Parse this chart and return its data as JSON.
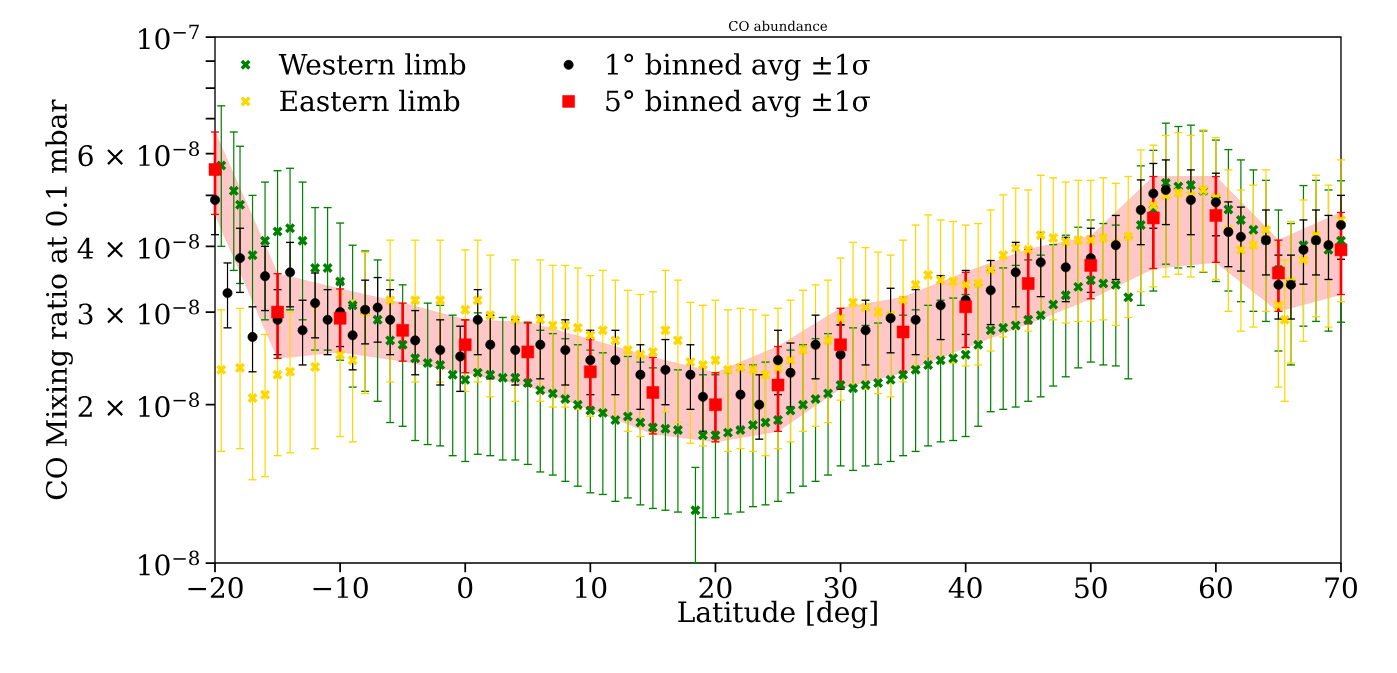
{
  "chart_data": {
    "type": "scatter",
    "title": "CO abundance",
    "xlabel": "Latitude [deg]",
    "ylabel": "CO Mixing ratio at 0.1 mbar",
    "xlim": [
      -20,
      70
    ],
    "ylim": [
      1e-08,
      1e-07
    ],
    "log": "y",
    "legend": "top left",
    "grid": false,
    "xticks": [
      {
        "value": -20,
        "label": "−20"
      },
      {
        "value": -10,
        "label": "−10"
      },
      0,
      10,
      20,
      30,
      40,
      50,
      60,
      70
    ],
    "yticks": [
      {
        "value": 1e-08,
        "label": "10$^{−8}$"
      },
      {
        "value": 2e-08,
        "label": "2 × 10$^{−8}$"
      },
      {
        "value": 3e-08,
        "label": "3 × 10$^{−8}$"
      },
      {
        "value": 4e-08,
        "label": "4 × 10$^{−8}$"
      },
      {
        "value": 5e-08,
        "label": null
      },
      {
        "value": 6e-08,
        "label": "6 × 10$^{−8}$"
      },
      {
        "value": 7e-08,
        "label": null
      },
      {
        "value": 8e-08,
        "label": null
      },
      {
        "value": 9e-08,
        "label": null
      },
      {
        "value": 1e-07,
        "label": "10$^{−7}$"
      }
    ],
    "series": [
      {
        "name": "Western limb",
        "color": "#008000",
        "marker": "cross",
        "x": [
          -19.5,
          -18.5,
          -18,
          -17,
          -16,
          -15,
          -14,
          -13,
          -12,
          -11,
          -10,
          -9,
          -8,
          -7,
          -6,
          -5,
          -4,
          -3,
          -2,
          -1,
          0,
          1,
          2,
          3,
          4,
          5,
          6,
          7,
          8,
          9,
          10,
          11,
          12,
          13,
          14,
          15,
          16,
          17,
          18.4,
          19,
          20,
          21,
          22,
          23,
          24,
          25,
          26,
          27,
          28,
          29,
          30,
          31,
          32,
          33,
          34,
          35,
          36,
          37,
          38,
          39,
          40,
          41,
          42,
          43,
          44,
          45,
          46,
          47,
          48,
          49,
          50,
          51,
          52,
          53,
          54,
          55,
          56,
          57,
          58,
          59,
          60,
          61,
          62,
          63,
          64,
          65,
          66,
          67,
          68,
          69,
          70
        ],
        "values": [
          5.7e-08,
          5.1e-08,
          4.8e-08,
          3.85e-08,
          4.1e-08,
          4.27e-08,
          4.33e-08,
          4.1e-08,
          3.64e-08,
          3.64e-08,
          3.43e-08,
          3.09e-08,
          3.02e-08,
          2.9e-08,
          2.65e-08,
          2.6e-08,
          2.45e-08,
          2.4e-08,
          2.38e-08,
          2.28e-08,
          2.23e-08,
          2.3e-08,
          2.28e-08,
          2.25e-08,
          2.25e-08,
          2.2e-08,
          2.13e-08,
          2.1e-08,
          2.05e-08,
          2e-08,
          1.95e-08,
          1.93e-08,
          1.87e-08,
          1.9e-08,
          1.85e-08,
          1.81e-08,
          1.8e-08,
          1.79e-08,
          1.26e-08,
          1.75e-08,
          1.75e-08,
          1.77e-08,
          1.79e-08,
          1.83e-08,
          1.85e-08,
          1.87e-08,
          1.95e-08,
          2e-08,
          2.05e-08,
          2.1e-08,
          2.18e-08,
          2.15e-08,
          2.18e-08,
          2.2e-08,
          2.23e-08,
          2.28e-08,
          2.33e-08,
          2.38e-08,
          2.43e-08,
          2.45e-08,
          2.49e-08,
          2.6e-08,
          2.77e-08,
          2.8e-08,
          2.83e-08,
          2.9e-08,
          2.96e-08,
          3.1e-08,
          3.23e-08,
          3.35e-08,
          3.45e-08,
          3.4e-08,
          3.38e-08,
          3.2e-08,
          4.39e-08,
          4.69e-08,
          5.28e-08,
          5.2e-08,
          5.23e-08,
          5.1e-08,
          4.9e-08,
          4.7e-08,
          4.49e-08,
          4.3e-08,
          4.11e-08,
          3.61e-08,
          3.4e-08,
          4.02e-08,
          4.11e-08,
          3.94e-08,
          4.1e-08
        ],
        "errors": [
          1.7e-08,
          1.5e-08,
          1.4e-08,
          1.15e-08,
          1.2e-08,
          1.3e-08,
          1.3e-08,
          1.2e-08,
          1.1e-08,
          1.1e-08,
          1e-08,
          9.3e-09,
          9e-09,
          8.7e-09,
          8e-09,
          7.8e-09,
          7.4e-09,
          7.2e-09,
          7.1e-09,
          6.8e-09,
          6.7e-09,
          6.9e-09,
          6.8e-09,
          6.8e-09,
          6.8e-09,
          6.6e-09,
          6.4e-09,
          6.3e-09,
          6.2e-09,
          6e-09,
          5.9e-09,
          5.8e-09,
          5.6e-09,
          5.7e-09,
          5.6e-09,
          5.4e-09,
          5.4e-09,
          5.4e-09,
          2.6e-09,
          5.3e-09,
          5.3e-09,
          5.3e-09,
          5.4e-09,
          5.5e-09,
          5.6e-09,
          5.6e-09,
          5.9e-09,
          6e-09,
          6.2e-09,
          6.3e-09,
          6.5e-09,
          6.5e-09,
          6.5e-09,
          6.6e-09,
          6.7e-09,
          6.8e-09,
          7e-09,
          7.1e-09,
          7.3e-09,
          7.4e-09,
          7.5e-09,
          7.8e-09,
          8.3e-09,
          8.4e-09,
          8.5e-09,
          8.7e-09,
          8.9e-09,
          9.3e-09,
          9.7e-09,
          1e-08,
          1.04e-08,
          1.02e-08,
          1.01e-08,
          9.6e-09,
          1.3e-08,
          1.4e-08,
          1.58e-08,
          1.56e-08,
          1.57e-08,
          1.53e-08,
          1.47e-08,
          1.41e-08,
          1.35e-08,
          1.29e-08,
          1.23e-08,
          1.08e-08,
          1.02e-08,
          1.2e-08,
          1.23e-08,
          1.18e-08,
          1.23e-08
        ]
      },
      {
        "name": "Eastern limb",
        "color": "#ffd700",
        "marker": "cross",
        "x": [
          -19.5,
          -18,
          -17,
          -16,
          -15,
          -14,
          -12,
          -10,
          -9,
          -8,
          -6,
          -4,
          -2,
          0,
          1,
          2,
          4,
          6,
          7,
          8,
          9,
          10,
          11,
          12,
          13,
          14,
          15,
          16,
          17,
          18,
          19,
          20,
          21,
          22,
          23,
          24,
          25,
          26,
          27,
          28,
          29,
          30,
          31,
          32,
          33,
          34,
          35,
          36,
          37,
          38,
          39,
          40,
          41,
          42,
          43,
          44,
          45,
          46,
          47,
          48,
          49,
          50,
          51,
          52,
          53,
          54,
          55,
          56,
          57,
          58,
          59,
          60,
          61,
          62,
          63,
          64,
          65,
          65.5,
          66,
          67,
          68,
          69,
          70
        ],
        "values": [
          2.33e-08,
          2.35e-08,
          2.06e-08,
          2.09e-08,
          2.28e-08,
          2.31e-08,
          2.36e-08,
          2.49e-08,
          2.43e-08,
          3e-08,
          3.16e-08,
          3.16e-08,
          3.16e-08,
          3.03e-08,
          3.16e-08,
          2.96e-08,
          2.9e-08,
          2.9e-08,
          2.83e-08,
          2.83e-08,
          2.8e-08,
          2.71e-08,
          2.77e-08,
          2.65e-08,
          2.54e-08,
          2.49e-08,
          2.52e-08,
          2.77e-08,
          2.65e-08,
          2.41e-08,
          2.38e-08,
          2.43e-08,
          2.33e-08,
          2.35e-08,
          2.33e-08,
          2.28e-08,
          2.35e-08,
          2.43e-08,
          2.54e-08,
          2.6e-08,
          2.65e-08,
          2.92e-08,
          3.13e-08,
          3.06e-08,
          3e-08,
          2.96e-08,
          3.16e-08,
          3.38e-08,
          3.53e-08,
          3.45e-08,
          3.43e-08,
          3.38e-08,
          3.4e-08,
          3.61e-08,
          3.85e-08,
          3.97e-08,
          3.94e-08,
          4.2e-08,
          4.15e-08,
          4.08e-08,
          4.11e-08,
          4.11e-08,
          4.15e-08,
          4.05e-08,
          4.18e-08,
          4.69e-08,
          4.79e-08,
          5e-08,
          5.06e-08,
          5e-08,
          5.12e-08,
          4.95e-08,
          4.3e-08,
          3.94e-08,
          4.02e-08,
          4.3e-08,
          3.09e-08,
          2.9e-08,
          3.43e-08,
          3.77e-08,
          4.2e-08,
          4.02e-08,
          4.49e-08
        ],
        "errors": [
          7e-09,
          7e-09,
          6.2e-09,
          6.3e-09,
          6.8e-09,
          6.9e-09,
          7.1e-09,
          7.5e-09,
          7.3e-09,
          9e-09,
          9.5e-09,
          9.5e-09,
          9.5e-09,
          9.1e-09,
          9.5e-09,
          8.9e-09,
          8.7e-09,
          8.7e-09,
          8.5e-09,
          8.5e-09,
          8.4e-09,
          8.1e-09,
          8.3e-09,
          8e-09,
          7.6e-09,
          7.5e-09,
          7.6e-09,
          8.3e-09,
          8e-09,
          7.2e-09,
          7.1e-09,
          7.3e-09,
          7e-09,
          7e-09,
          7e-09,
          6.8e-09,
          7e-09,
          7.3e-09,
          7.6e-09,
          7.8e-09,
          8e-09,
          8.8e-09,
          9.4e-09,
          9.2e-09,
          9e-09,
          8.9e-09,
          9.5e-09,
          1.01e-08,
          1.06e-08,
          1.04e-08,
          1.03e-08,
          1.01e-08,
          1.02e-08,
          1.08e-08,
          1.16e-08,
          1.19e-08,
          1.18e-08,
          1.26e-08,
          1.25e-08,
          1.22e-08,
          1.23e-08,
          1.23e-08,
          1.25e-08,
          1.22e-08,
          1.25e-08,
          1.41e-08,
          1.44e-08,
          1.5e-08,
          1.52e-08,
          1.5e-08,
          1.54e-08,
          1.49e-08,
          1.29e-08,
          1.18e-08,
          1.21e-08,
          1.29e-08,
          9.3e-09,
          8.7e-09,
          1.03e-08,
          1.13e-08,
          1.26e-08,
          1.21e-08,
          1.35e-08
        ]
      },
      {
        "name": "1° binned avg ±1σ",
        "color": "#000000",
        "marker": "circle",
        "x": [
          -20,
          -19,
          -18,
          -17,
          -16,
          -15,
          -14,
          -13,
          -12,
          -11,
          -10,
          -9,
          -8,
          -7,
          -6,
          -4,
          -2,
          -0.4,
          1,
          2,
          4,
          6,
          8,
          10,
          12,
          14,
          16,
          18,
          19,
          22,
          23.5,
          25,
          26,
          28,
          30,
          32,
          34,
          36,
          38,
          40,
          42,
          44,
          46,
          48,
          50,
          52,
          54,
          55,
          56,
          58,
          60,
          61,
          62,
          64,
          65,
          66,
          67,
          68,
          69,
          70
        ],
        "values": [
          4.9e-08,
          3.26e-08,
          3.8e-08,
          2.69e-08,
          3.51e-08,
          2.9e-08,
          3.57e-08,
          2.77e-08,
          3.12e-08,
          2.9e-08,
          3e-08,
          2.71e-08,
          3.03e-08,
          3.06e-08,
          2.9e-08,
          2.65e-08,
          2.54e-08,
          2.47e-08,
          2.9e-08,
          2.6e-08,
          2.54e-08,
          2.6e-08,
          2.54e-08,
          2.43e-08,
          2.43e-08,
          2.28e-08,
          2.33e-08,
          2.28e-08,
          2.07e-08,
          2.09e-08,
          2e-08,
          2.43e-08,
          2.3e-08,
          2.6e-08,
          2.49e-08,
          2.77e-08,
          2.92e-08,
          2.9e-08,
          3.09e-08,
          3.16e-08,
          3.3e-08,
          3.57e-08,
          3.73e-08,
          3.65e-08,
          3.8e-08,
          4.02e-08,
          4.69e-08,
          5.04e-08,
          5.12e-08,
          4.9e-08,
          4.85e-08,
          4.26e-08,
          4.17e-08,
          4.11e-08,
          3.38e-08,
          3.38e-08,
          3.94e-08,
          4.11e-08,
          4.02e-08,
          4.39e-08
        ],
        "errors": [
          6.9e-09,
          4.6e-09,
          5.3e-09,
          3.8e-09,
          4.9e-09,
          4.1e-09,
          5e-09,
          3.9e-09,
          4.4e-09,
          4.1e-09,
          4.2e-09,
          3.8e-09,
          4.2e-09,
          4.3e-09,
          4.1e-09,
          3.7e-09,
          3.6e-09,
          3.5e-09,
          4.1e-09,
          3.6e-09,
          3.6e-09,
          3.6e-09,
          3.6e-09,
          3.4e-09,
          3.4e-09,
          3.2e-09,
          3.3e-09,
          3.2e-09,
          2.9e-09,
          2.9e-09,
          2.8e-09,
          3.4e-09,
          3.2e-09,
          3.6e-09,
          3.5e-09,
          3.9e-09,
          4.1e-09,
          4.1e-09,
          4.3e-09,
          4.4e-09,
          4.6e-09,
          5e-09,
          5.2e-09,
          5.1e-09,
          5.3e-09,
          5.6e-09,
          6.6e-09,
          7.1e-09,
          7.2e-09,
          6.9e-09,
          6.6e-09,
          6e-09,
          5.8e-09,
          5.8e-09,
          4.7e-09,
          4.7e-09,
          5.5e-09,
          5.8e-09,
          5.6e-09,
          6.1e-09
        ]
      },
      {
        "name": "5° binned avg ±1σ",
        "color": "#ff0000",
        "marker": "square",
        "x": [
          -20,
          -15,
          -10,
          -5,
          0,
          5,
          10,
          15,
          20,
          25,
          30,
          35,
          40,
          45,
          50,
          55,
          60,
          65,
          70
        ],
        "values": [
          5.6e-08,
          3e-08,
          2.92e-08,
          2.77e-08,
          2.6e-08,
          2.52e-08,
          2.31e-08,
          2.11e-08,
          2e-08,
          2.18e-08,
          2.6e-08,
          2.75e-08,
          3.07e-08,
          3.4e-08,
          3.68e-08,
          4.53e-08,
          4.58e-08,
          3.56e-08,
          3.94e-08
        ],
        "errors": [
          1e-08,
          5.5e-09,
          4e-09,
          3.5e-09,
          3e-09,
          3.5e-09,
          3.5e-09,
          3.5e-09,
          3e-09,
          4e-09,
          4.5e-09,
          4.5e-09,
          5e-09,
          5.5e-09,
          5e-09,
          9e-09,
          8.5e-09,
          5.5e-09,
          7e-09
        ],
        "lower": [
          4.6e-08,
          2.45e-08,
          2.52e-08,
          2.42e-08,
          2.3e-08,
          2.17e-08,
          1.96e-08,
          1.76e-08,
          1.7e-08,
          1.78e-08,
          2.15e-08,
          2.3e-08,
          2.57e-08,
          2.85e-08,
          3.18e-08,
          3.63e-08,
          3.73e-08,
          3.01e-08,
          3.24e-08
        ],
        "upper": [
          6.6e-08,
          3.55e-08,
          3.32e-08,
          3.12e-08,
          2.9e-08,
          2.87e-08,
          2.66e-08,
          2.46e-08,
          2.3e-08,
          2.58e-08,
          3.05e-08,
          3.2e-08,
          3.57e-08,
          3.95e-08,
          4.18e-08,
          5.43e-08,
          5.43e-08,
          4.11e-08,
          4.64e-08
        ]
      }
    ]
  }
}
